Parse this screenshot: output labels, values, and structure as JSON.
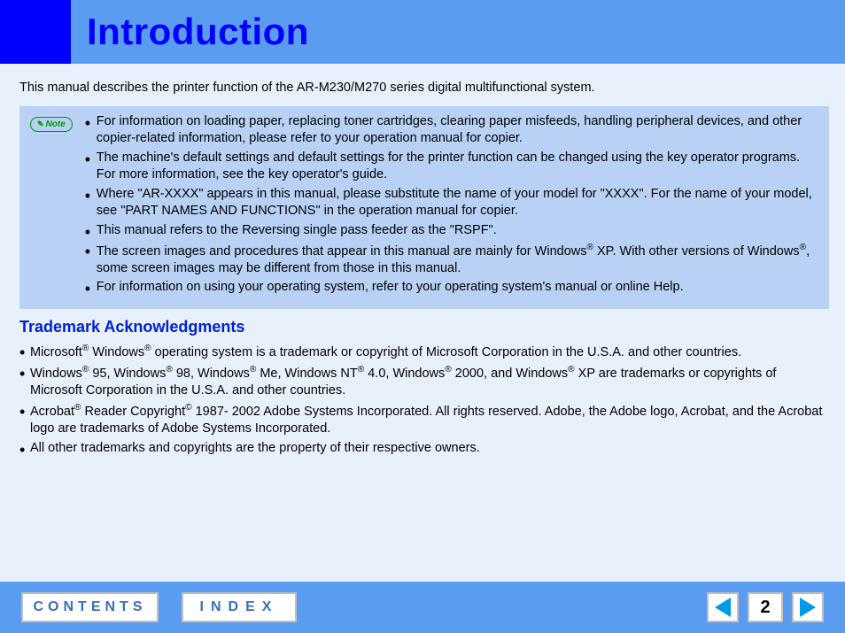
{
  "header": {
    "title": "Introduction"
  },
  "intro_text": "This manual describes the printer function of the AR-M230/M270 series digital multifunctional system.",
  "note": {
    "label": "Note",
    "items": [
      "For information on loading paper, replacing toner cartridges, clearing paper misfeeds, handling peripheral devices, and other copier-related information, please refer to your operation manual for copier.",
      "The machine's default settings and default settings for the printer function can be changed using the key operator programs. For more information, see the key operator's guide.",
      "Where \"AR-XXXX\" appears in this manual, please substitute the name of your model for \"XXXX\". For the name of your model, see \"PART NAMES AND FUNCTIONS\" in the operation manual for copier.",
      "This manual refers to the Reversing single pass feeder as the \"RSPF\".",
      "The screen images and procedures that appear in this manual are mainly for Windows® XP. With other versions of Windows®, some screen images may be different from those in this manual.",
      "For information on using your operating system, refer to your operating system's manual or online Help."
    ]
  },
  "trademark": {
    "heading": "Trademark Acknowledgments",
    "items": [
      "Microsoft® Windows® operating system is a trademark or copyright of Microsoft Corporation in the U.S.A. and other countries.",
      "Windows® 95, Windows® 98, Windows® Me, Windows NT® 4.0, Windows® 2000, and Windows® XP are trademarks or copyrights of Microsoft Corporation in the U.S.A. and other countries.",
      "Acrobat® Reader Copyright© 1987- 2002 Adobe Systems Incorporated. All rights reserved. Adobe, the Adobe logo, Acrobat, and the Acrobat logo are trademarks of Adobe Systems Incorporated.",
      "All other trademarks and copyrights are the property of their respective owners."
    ]
  },
  "footer": {
    "contents_label": "CONTENTS",
    "index_label": "INDEX",
    "page_number": "2"
  },
  "colors": {
    "header_band": "#5a9cf0",
    "header_square": "#0000ff",
    "title_text": "#0000ff",
    "page_bg": "#e8f1fb",
    "note_bg": "#b8d1f5",
    "note_pill": "#009900",
    "subheading": "#0020d0",
    "footer_bg": "#5a9cf0",
    "button_text": "#3a6fb7",
    "arrow_fill": "#0099e6",
    "button_border": "#bfbfbf"
  }
}
